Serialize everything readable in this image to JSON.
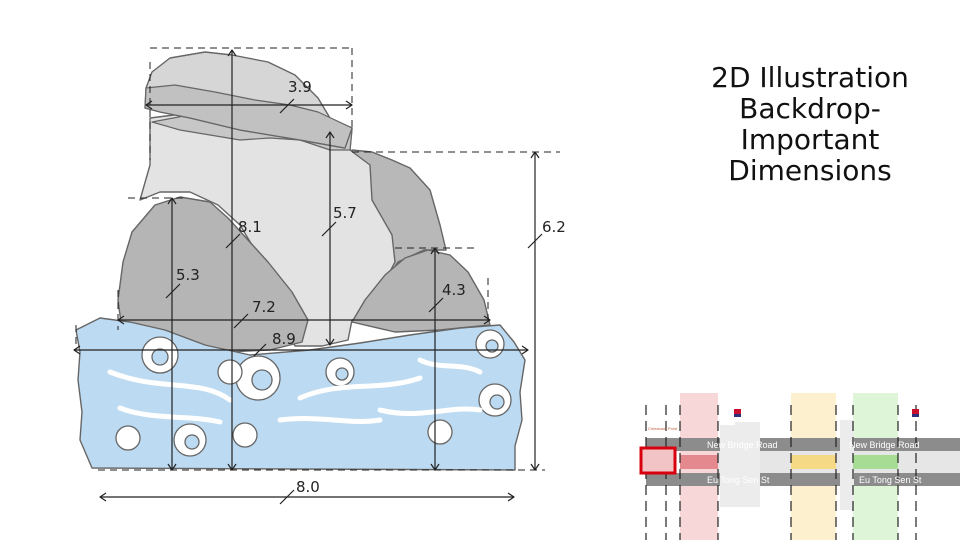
{
  "slide": {
    "title_lines": [
      "2D Illustration",
      "Backdrop-",
      "Important",
      "Dimensions"
    ]
  },
  "illustration": {
    "dimensions": {
      "top_rock_width": "3.9",
      "top_rock_height": "8.1",
      "center_rock_height": "5.7",
      "right_stack_height": "6.2",
      "left_rock_height": "5.3",
      "right_rock_height": "4.3",
      "rock_base_width": "7.2",
      "cloud_width": "8.9",
      "overall_width": "8.0"
    },
    "colors": {
      "rock_light": "#e3e3e3",
      "rock_mid": "#c9c9c9",
      "rock_dark": "#b1b1b1",
      "cloud": "#bcdaf1",
      "outline": "#666666"
    }
  },
  "location_map": {
    "streets": [
      "New Bridge Road",
      "New Bridge Road",
      "Eu Tong Sen St",
      "Eu Tong Sen St"
    ],
    "landmark": "Chinatown Point",
    "colors": {
      "highlight": "#d9000d",
      "zone_pink": "#f8d7d8",
      "zone_yellow": "#fdf0cf",
      "zone_green": "#dff5d7",
      "road": "#8c8c8c"
    }
  }
}
